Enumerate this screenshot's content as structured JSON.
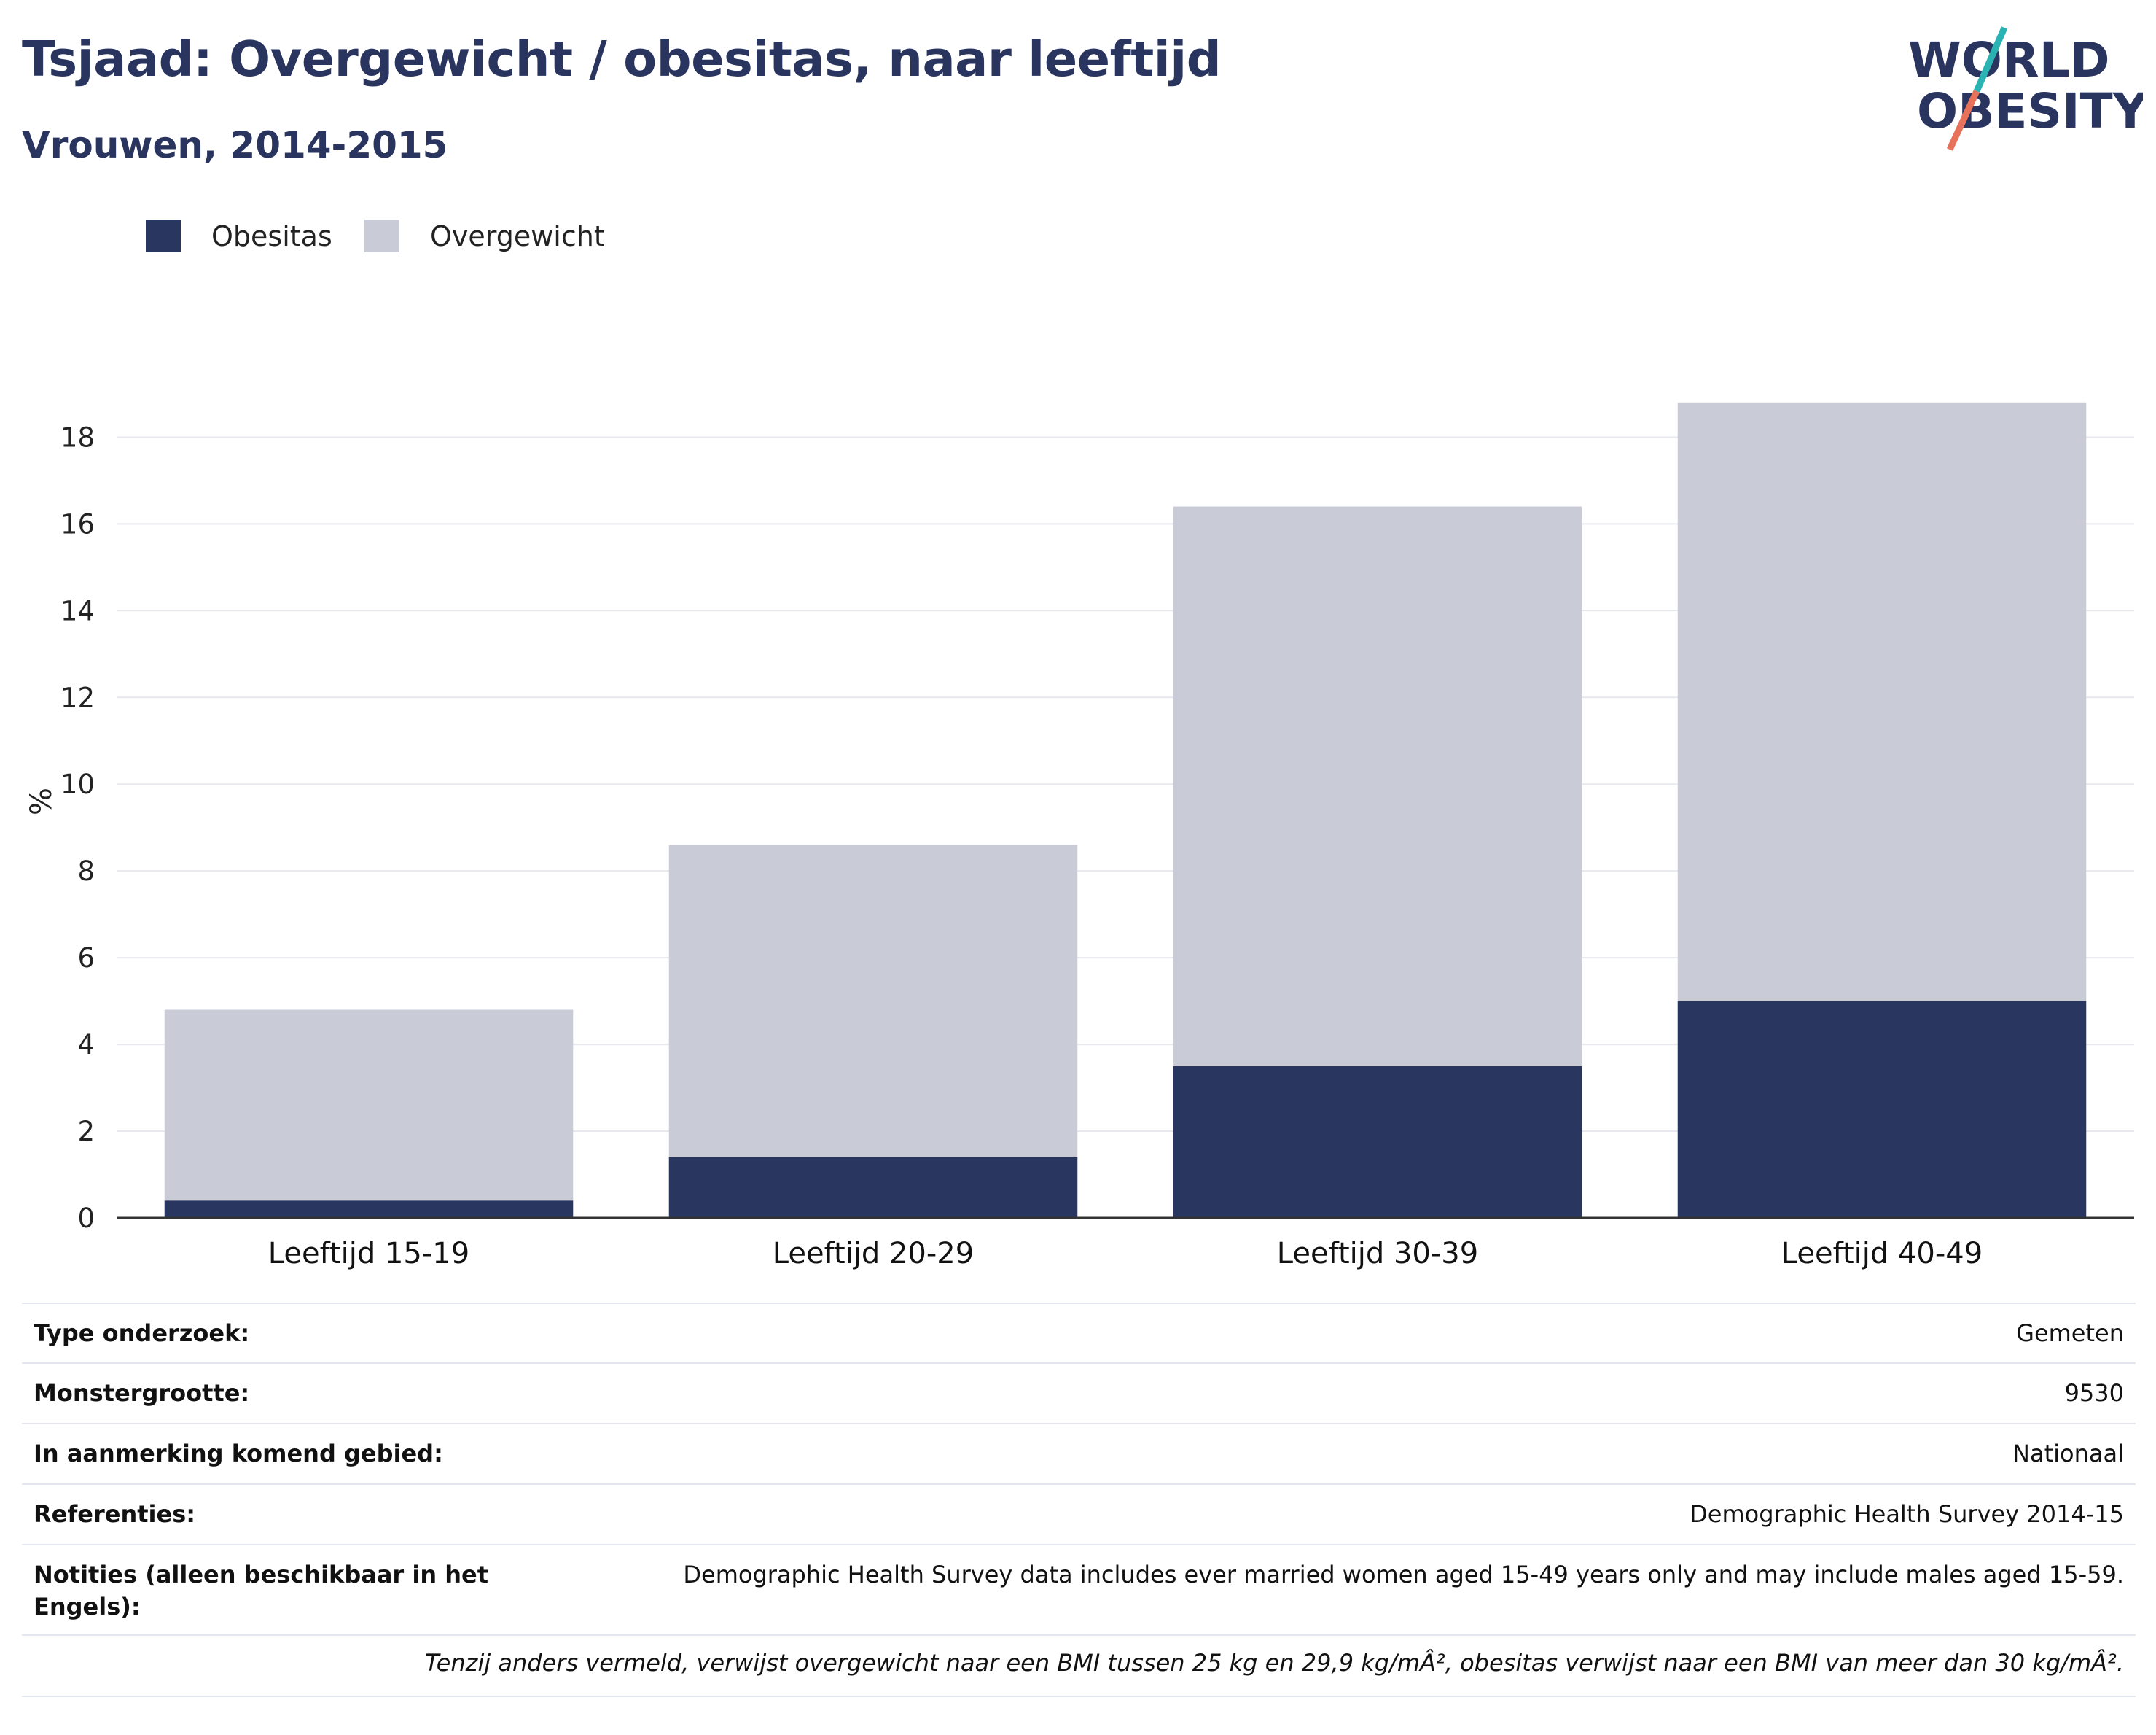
{
  "header": {
    "title": "Tsjaad: Overgewicht / obesitas, naar leeftijd",
    "subtitle": "Vrouwen, 2014-2015"
  },
  "logo": {
    "line1": "WORLD",
    "line2": "OBESITY",
    "colors": {
      "text": "#29345f",
      "slash_top": "#2ab3b3",
      "slash_bottom": "#e8715a"
    }
  },
  "colors": {
    "obesitas": "#29365f",
    "overgewicht": "#c9cbd6",
    "grid": "#e8e9ee",
    "axis": "#333333",
    "title": "#29345f"
  },
  "legend": {
    "items": [
      {
        "label": "Obesitas",
        "color": "#29365f"
      },
      {
        "label": "Overgewicht",
        "color": "#c9cbd6"
      }
    ]
  },
  "chart_data": {
    "type": "bar",
    "stacked": true,
    "title": "Tsjaad: Overgewicht / obesitas, naar leeftijd",
    "subtitle": "Vrouwen, 2014-2015",
    "xlabel": "",
    "ylabel": "%",
    "ylim": [
      0,
      19.2
    ],
    "yticks": [
      0,
      2,
      4,
      6,
      8,
      10,
      12,
      14,
      16,
      18
    ],
    "grid": true,
    "legend_position": "top-left",
    "categories": [
      "Leeftijd 15-19",
      "Leeftijd 20-29",
      "Leeftijd 30-39",
      "Leeftijd 40-49"
    ],
    "series": [
      {
        "name": "Obesitas",
        "values": [
          0.4,
          1.4,
          3.5,
          5.0
        ]
      },
      {
        "name": "Overgewicht",
        "values": [
          4.4,
          7.2,
          12.9,
          13.8
        ]
      }
    ],
    "totals": [
      4.8,
      8.6,
      16.4,
      18.8
    ]
  },
  "info": {
    "rows": [
      {
        "label": "Type onderzoek:",
        "value": "Gemeten"
      },
      {
        "label": "Monstergrootte:",
        "value": "9530"
      },
      {
        "label": "In aanmerking komend gebied:",
        "value": "Nationaal"
      },
      {
        "label": "Referenties:",
        "value": "Demographic Health Survey 2014-15"
      },
      {
        "label": "Notities (alleen beschikbaar in het Engels):",
        "value": "Demographic Health Survey data includes ever married women aged 15-49 years only and may include males aged 15-59."
      }
    ],
    "footnote": "Tenzij anders vermeld, verwijst overgewicht naar een BMI tussen 25 kg en 29,9 kg/mÂ², obesitas verwijst naar een BMI van meer dan 30 kg/mÂ²."
  }
}
